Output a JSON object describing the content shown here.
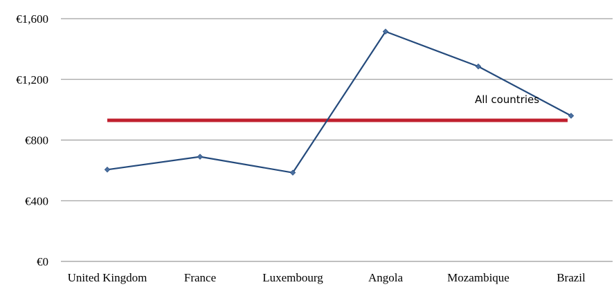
{
  "chart_data": {
    "type": "line",
    "categories": [
      "United Kingdom",
      "France",
      "Luxembourg",
      "Angola",
      "Mozambique",
      "Brazil"
    ],
    "series": [
      {
        "values": [
          605,
          690,
          585,
          1515,
          1285,
          960
        ],
        "color": "#244a7c",
        "marker": "diamond"
      }
    ],
    "reference_line": {
      "value": 930,
      "color": "#c0202e"
    },
    "annotation": "All countries",
    "y_tick_labels": [
      "€0",
      "€400",
      "€800",
      "€1,200",
      "€1,600"
    ],
    "y_ticks": [
      0,
      400,
      800,
      1200,
      1600
    ],
    "ylim": [
      0,
      1600
    ],
    "title": "",
    "xlabel": "",
    "ylabel": "",
    "grid": true,
    "legend": false
  }
}
